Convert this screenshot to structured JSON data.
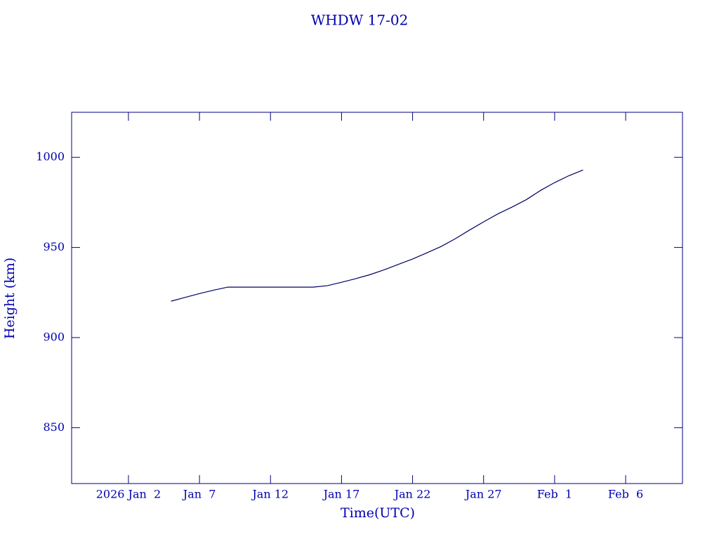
{
  "chart_data": {
    "type": "line",
    "title": "WHDW 17-02",
    "x_label": "Time(UTC)",
    "y_label": "Height (km)",
    "x": [
      "2026-01-05",
      "2026-01-06",
      "2026-01-07",
      "2026-01-08",
      "2026-01-09",
      "2026-01-10",
      "2026-01-11",
      "2026-01-12",
      "2026-01-13",
      "2026-01-14",
      "2026-01-15",
      "2026-01-16",
      "2026-01-17",
      "2026-01-18",
      "2026-01-19",
      "2026-01-20",
      "2026-01-21",
      "2026-01-22",
      "2026-01-23",
      "2026-01-24",
      "2026-01-25",
      "2026-01-26",
      "2026-01-27",
      "2026-01-28",
      "2026-01-29",
      "2026-01-30",
      "2026-01-31",
      "2026-02-01",
      "2026-02-02",
      "2026-02-03"
    ],
    "series": [
      {
        "color": "#000066",
        "values": [
          920.2,
          922.3,
          924.4,
          926.3,
          928,
          928,
          928,
          928,
          928,
          928,
          928,
          928.8,
          930.7,
          932.7,
          934.9,
          937.6,
          940.6,
          943.6,
          947,
          950.5,
          954.8,
          959.6,
          964.2,
          968.6,
          972.4,
          976.5,
          981.6,
          986,
          989.8,
          993
        ]
      }
    ],
    "xlim": [
      "2025-12-29",
      "2026-02-10"
    ],
    "xticks": [
      {
        "value": "2026-01-02",
        "label": "2026 Jan  2"
      },
      {
        "value": "2026-01-07",
        "label": "Jan  7"
      },
      {
        "value": "2026-01-12",
        "label": "Jan 12"
      },
      {
        "value": "2026-01-17",
        "label": "Jan 17"
      },
      {
        "value": "2026-01-22",
        "label": "Jan 22"
      },
      {
        "value": "2026-01-27",
        "label": "Jan 27"
      },
      {
        "value": "2026-02-01",
        "label": "Feb  1"
      },
      {
        "value": "2026-02-06",
        "label": "Feb  6"
      }
    ],
    "ylim": [
      819,
      1025
    ],
    "yticks": [
      850,
      900,
      950,
      1000
    ],
    "grid": false
  }
}
